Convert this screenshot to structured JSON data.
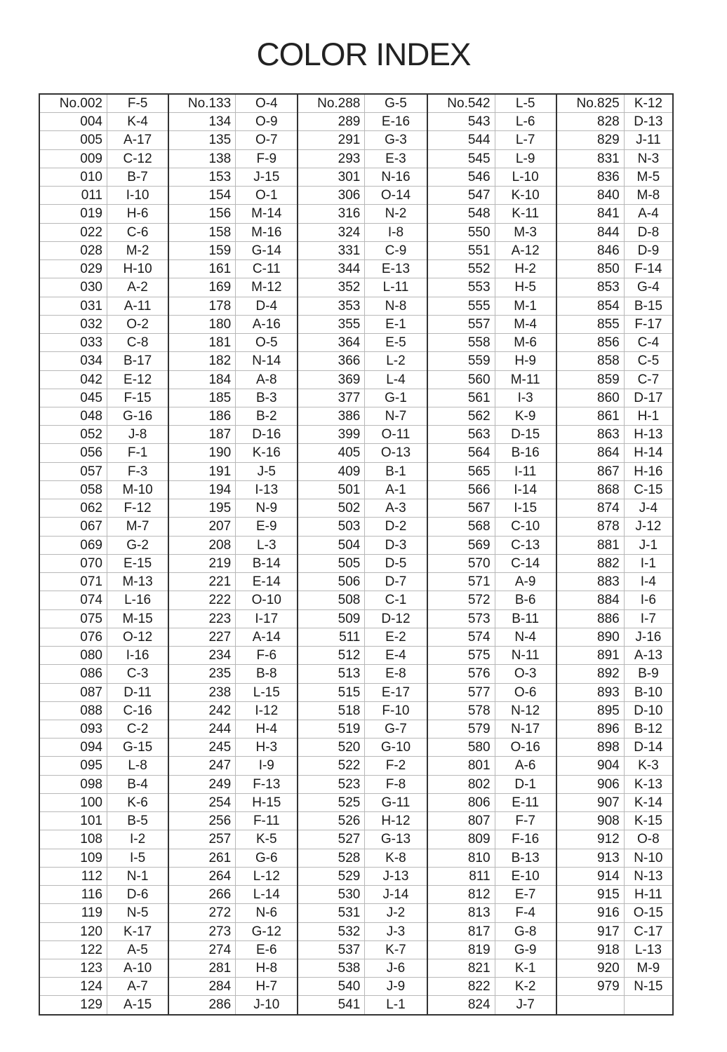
{
  "title": "COLOR INDEX",
  "groups": [
    {
      "entries": [
        [
          "No.002",
          "F-5"
        ],
        [
          "004",
          "K-4"
        ],
        [
          "005",
          "A-17"
        ],
        [
          "009",
          "C-12"
        ],
        [
          "010",
          "B-7"
        ],
        [
          "011",
          "I-10"
        ],
        [
          "019",
          "H-6"
        ],
        [
          "022",
          "C-6"
        ],
        [
          "028",
          "M-2"
        ],
        [
          "029",
          "H-10"
        ],
        [
          "030",
          "A-2"
        ],
        [
          "031",
          "A-11"
        ],
        [
          "032",
          "O-2"
        ],
        [
          "033",
          "C-8"
        ],
        [
          "034",
          "B-17"
        ],
        [
          "042",
          "E-12"
        ],
        [
          "045",
          "F-15"
        ],
        [
          "048",
          "G-16"
        ],
        [
          "052",
          "J-8"
        ],
        [
          "056",
          "F-1"
        ],
        [
          "057",
          "F-3"
        ],
        [
          "058",
          "M-10"
        ],
        [
          "062",
          "F-12"
        ],
        [
          "067",
          "M-7"
        ],
        [
          "069",
          "G-2"
        ],
        [
          "070",
          "E-15"
        ],
        [
          "071",
          "M-13"
        ],
        [
          "074",
          "L-16"
        ],
        [
          "075",
          "M-15"
        ],
        [
          "076",
          "O-12"
        ],
        [
          "080",
          "I-16"
        ],
        [
          "086",
          "C-3"
        ],
        [
          "087",
          "D-11"
        ],
        [
          "088",
          "C-16"
        ],
        [
          "093",
          "C-2"
        ],
        [
          "094",
          "G-15"
        ],
        [
          "095",
          "L-8"
        ],
        [
          "098",
          "B-4"
        ],
        [
          "100",
          "K-6"
        ],
        [
          "101",
          "B-5"
        ],
        [
          "108",
          "I-2"
        ],
        [
          "109",
          "I-5"
        ],
        [
          "112",
          "N-1"
        ],
        [
          "116",
          "D-6"
        ],
        [
          "119",
          "N-5"
        ],
        [
          "120",
          "K-17"
        ],
        [
          "122",
          "A-5"
        ],
        [
          "123",
          "A-10"
        ],
        [
          "124",
          "A-7"
        ],
        [
          "129",
          "A-15"
        ]
      ]
    },
    {
      "entries": [
        [
          "No.133",
          "O-4"
        ],
        [
          "134",
          "O-9"
        ],
        [
          "135",
          "O-7"
        ],
        [
          "138",
          "F-9"
        ],
        [
          "153",
          "J-15"
        ],
        [
          "154",
          "O-1"
        ],
        [
          "156",
          "M-14"
        ],
        [
          "158",
          "M-16"
        ],
        [
          "159",
          "G-14"
        ],
        [
          "161",
          "C-11"
        ],
        [
          "169",
          "M-12"
        ],
        [
          "178",
          "D-4"
        ],
        [
          "180",
          "A-16"
        ],
        [
          "181",
          "O-5"
        ],
        [
          "182",
          "N-14"
        ],
        [
          "184",
          "A-8"
        ],
        [
          "185",
          "B-3"
        ],
        [
          "186",
          "B-2"
        ],
        [
          "187",
          "D-16"
        ],
        [
          "190",
          "K-16"
        ],
        [
          "191",
          "J-5"
        ],
        [
          "194",
          "I-13"
        ],
        [
          "195",
          "N-9"
        ],
        [
          "207",
          "E-9"
        ],
        [
          "208",
          "L-3"
        ],
        [
          "219",
          "B-14"
        ],
        [
          "221",
          "E-14"
        ],
        [
          "222",
          "O-10"
        ],
        [
          "223",
          "I-17"
        ],
        [
          "227",
          "A-14"
        ],
        [
          "234",
          "F-6"
        ],
        [
          "235",
          "B-8"
        ],
        [
          "238",
          "L-15"
        ],
        [
          "242",
          "I-12"
        ],
        [
          "244",
          "H-4"
        ],
        [
          "245",
          "H-3"
        ],
        [
          "247",
          "I-9"
        ],
        [
          "249",
          "F-13"
        ],
        [
          "254",
          "H-15"
        ],
        [
          "256",
          "F-11"
        ],
        [
          "257",
          "K-5"
        ],
        [
          "261",
          "G-6"
        ],
        [
          "264",
          "L-12"
        ],
        [
          "266",
          "L-14"
        ],
        [
          "272",
          "N-6"
        ],
        [
          "273",
          "G-12"
        ],
        [
          "274",
          "E-6"
        ],
        [
          "281",
          "H-8"
        ],
        [
          "284",
          "H-7"
        ],
        [
          "286",
          "J-10"
        ]
      ]
    },
    {
      "entries": [
        [
          "No.288",
          "G-5"
        ],
        [
          "289",
          "E-16"
        ],
        [
          "291",
          "G-3"
        ],
        [
          "293",
          "E-3"
        ],
        [
          "301",
          "N-16"
        ],
        [
          "306",
          "O-14"
        ],
        [
          "316",
          "N-2"
        ],
        [
          "324",
          "I-8"
        ],
        [
          "331",
          "C-9"
        ],
        [
          "344",
          "E-13"
        ],
        [
          "352",
          "L-11"
        ],
        [
          "353",
          "N-8"
        ],
        [
          "355",
          "E-1"
        ],
        [
          "364",
          "E-5"
        ],
        [
          "366",
          "L-2"
        ],
        [
          "369",
          "L-4"
        ],
        [
          "377",
          "G-1"
        ],
        [
          "386",
          "N-7"
        ],
        [
          "399",
          "O-11"
        ],
        [
          "405",
          "O-13"
        ],
        [
          "409",
          "B-1"
        ],
        [
          "501",
          "A-1"
        ],
        [
          "502",
          "A-3"
        ],
        [
          "503",
          "D-2"
        ],
        [
          "504",
          "D-3"
        ],
        [
          "505",
          "D-5"
        ],
        [
          "506",
          "D-7"
        ],
        [
          "508",
          "C-1"
        ],
        [
          "509",
          "D-12"
        ],
        [
          "511",
          "E-2"
        ],
        [
          "512",
          "E-4"
        ],
        [
          "513",
          "E-8"
        ],
        [
          "515",
          "E-17"
        ],
        [
          "518",
          "F-10"
        ],
        [
          "519",
          "G-7"
        ],
        [
          "520",
          "G-10"
        ],
        [
          "522",
          "F-2"
        ],
        [
          "523",
          "F-8"
        ],
        [
          "525",
          "G-11"
        ],
        [
          "526",
          "H-12"
        ],
        [
          "527",
          "G-13"
        ],
        [
          "528",
          "K-8"
        ],
        [
          "529",
          "J-13"
        ],
        [
          "530",
          "J-14"
        ],
        [
          "531",
          "J-2"
        ],
        [
          "532",
          "J-3"
        ],
        [
          "537",
          "K-7"
        ],
        [
          "538",
          "J-6"
        ],
        [
          "540",
          "J-9"
        ],
        [
          "541",
          "L-1"
        ]
      ]
    },
    {
      "entries": [
        [
          "No.542",
          "L-5"
        ],
        [
          "543",
          "L-6"
        ],
        [
          "544",
          "L-7"
        ],
        [
          "545",
          "L-9"
        ],
        [
          "546",
          "L-10"
        ],
        [
          "547",
          "K-10"
        ],
        [
          "548",
          "K-11"
        ],
        [
          "550",
          "M-3"
        ],
        [
          "551",
          "A-12"
        ],
        [
          "552",
          "H-2"
        ],
        [
          "553",
          "H-5"
        ],
        [
          "555",
          "M-1"
        ],
        [
          "557",
          "M-4"
        ],
        [
          "558",
          "M-6"
        ],
        [
          "559",
          "H-9"
        ],
        [
          "560",
          "M-11"
        ],
        [
          "561",
          "I-3"
        ],
        [
          "562",
          "K-9"
        ],
        [
          "563",
          "D-15"
        ],
        [
          "564",
          "B-16"
        ],
        [
          "565",
          "I-11"
        ],
        [
          "566",
          "I-14"
        ],
        [
          "567",
          "I-15"
        ],
        [
          "568",
          "C-10"
        ],
        [
          "569",
          "C-13"
        ],
        [
          "570",
          "C-14"
        ],
        [
          "571",
          "A-9"
        ],
        [
          "572",
          "B-6"
        ],
        [
          "573",
          "B-11"
        ],
        [
          "574",
          "N-4"
        ],
        [
          "575",
          "N-11"
        ],
        [
          "576",
          "O-3"
        ],
        [
          "577",
          "O-6"
        ],
        [
          "578",
          "N-12"
        ],
        [
          "579",
          "N-17"
        ],
        [
          "580",
          "O-16"
        ],
        [
          "801",
          "A-6"
        ],
        [
          "802",
          "D-1"
        ],
        [
          "806",
          "E-11"
        ],
        [
          "807",
          "F-7"
        ],
        [
          "809",
          "F-16"
        ],
        [
          "810",
          "B-13"
        ],
        [
          "811",
          "E-10"
        ],
        [
          "812",
          "E-7"
        ],
        [
          "813",
          "F-4"
        ],
        [
          "817",
          "G-8"
        ],
        [
          "819",
          "G-9"
        ],
        [
          "821",
          "K-1"
        ],
        [
          "822",
          "K-2"
        ],
        [
          "824",
          "J-7"
        ]
      ]
    },
    {
      "entries": [
        [
          "No.825",
          "K-12"
        ],
        [
          "828",
          "D-13"
        ],
        [
          "829",
          "J-11"
        ],
        [
          "831",
          "N-3"
        ],
        [
          "836",
          "M-5"
        ],
        [
          "840",
          "M-8"
        ],
        [
          "841",
          "A-4"
        ],
        [
          "844",
          "D-8"
        ],
        [
          "846",
          "D-9"
        ],
        [
          "850",
          "F-14"
        ],
        [
          "853",
          "G-4"
        ],
        [
          "854",
          "B-15"
        ],
        [
          "855",
          "F-17"
        ],
        [
          "856",
          "C-4"
        ],
        [
          "858",
          "C-5"
        ],
        [
          "859",
          "C-7"
        ],
        [
          "860",
          "D-17"
        ],
        [
          "861",
          "H-1"
        ],
        [
          "863",
          "H-13"
        ],
        [
          "864",
          "H-14"
        ],
        [
          "867",
          "H-16"
        ],
        [
          "868",
          "C-15"
        ],
        [
          "874",
          "J-4"
        ],
        [
          "878",
          "J-12"
        ],
        [
          "881",
          "J-1"
        ],
        [
          "882",
          "I-1"
        ],
        [
          "883",
          "I-4"
        ],
        [
          "884",
          "I-6"
        ],
        [
          "886",
          "I-7"
        ],
        [
          "890",
          "J-16"
        ],
        [
          "891",
          "A-13"
        ],
        [
          "892",
          "B-9"
        ],
        [
          "893",
          "B-10"
        ],
        [
          "895",
          "D-10"
        ],
        [
          "896",
          "B-12"
        ],
        [
          "898",
          "D-14"
        ],
        [
          "904",
          "K-3"
        ],
        [
          "906",
          "K-13"
        ],
        [
          "907",
          "K-14"
        ],
        [
          "908",
          "K-15"
        ],
        [
          "912",
          "O-8"
        ],
        [
          "913",
          "N-10"
        ],
        [
          "914",
          "N-13"
        ],
        [
          "915",
          "H-11"
        ],
        [
          "916",
          "O-15"
        ],
        [
          "917",
          "C-17"
        ],
        [
          "918",
          "L-13"
        ],
        [
          "920",
          "M-9"
        ],
        [
          "979",
          "N-15"
        ],
        [
          "",
          ""
        ]
      ]
    }
  ]
}
